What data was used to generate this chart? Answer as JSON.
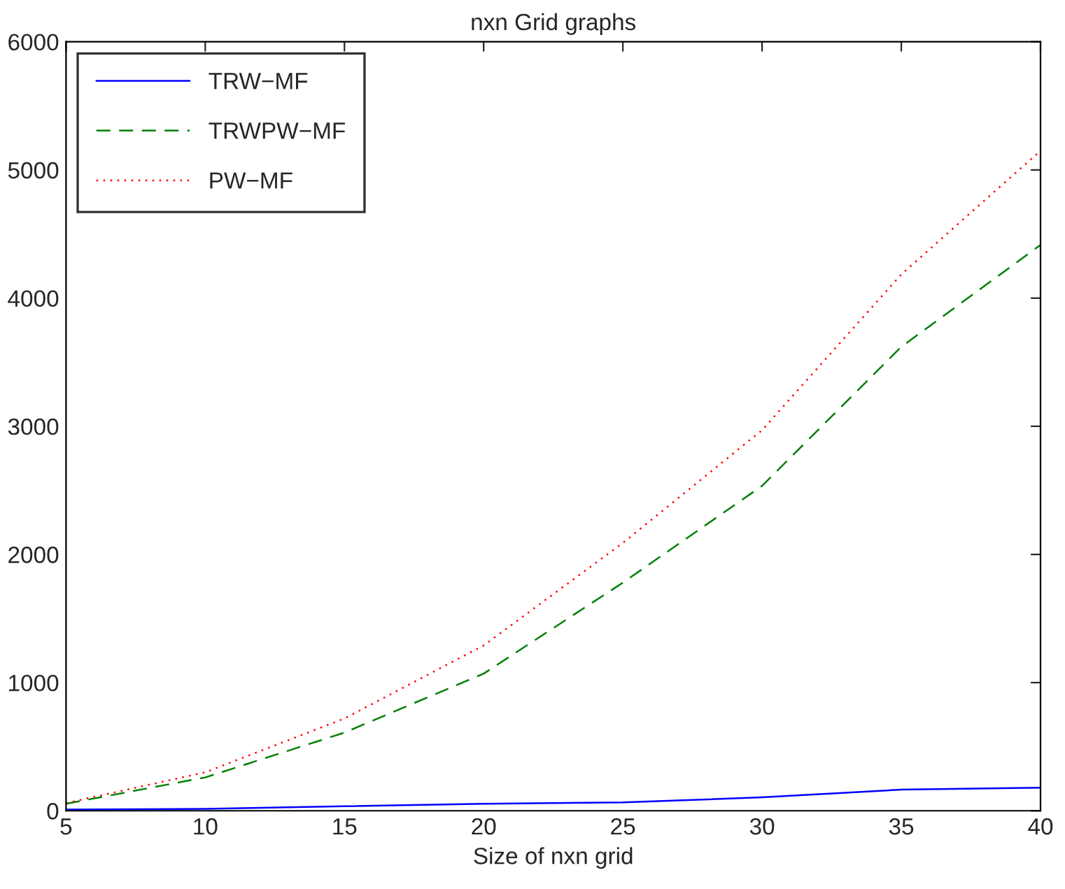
{
  "chart_data": {
    "type": "line",
    "title": "nxn Grid graphs",
    "xlabel": "Size of nxn grid",
    "x": [
      5,
      10,
      15,
      20,
      25,
      30,
      35,
      40
    ],
    "series": [
      {
        "name": "TRW−MF",
        "color": "#0000ff",
        "line_style": "solid",
        "values": [
          10,
          15,
          35,
          55,
          65,
          105,
          165,
          180
        ]
      },
      {
        "name": "TRWPW−MF",
        "color": "#007f00",
        "line_style": "dashed",
        "values": [
          55,
          260,
          610,
          1070,
          1780,
          2535,
          3620,
          4415
        ]
      },
      {
        "name": "PW−MF",
        "color": "#ff0000",
        "line_style": "dotted",
        "values": [
          60,
          300,
          720,
          1290,
          2090,
          2970,
          4185,
          5150
        ]
      }
    ],
    "xlim": [
      5,
      40
    ],
    "xticks": [
      5,
      10,
      15,
      20,
      25,
      30,
      35,
      40
    ],
    "ylim": [
      0,
      6000
    ],
    "yticks": [
      0,
      1000,
      2000,
      3000,
      4000,
      5000,
      6000
    ],
    "legend": "top left",
    "grid": false,
    "marker": "none"
  }
}
